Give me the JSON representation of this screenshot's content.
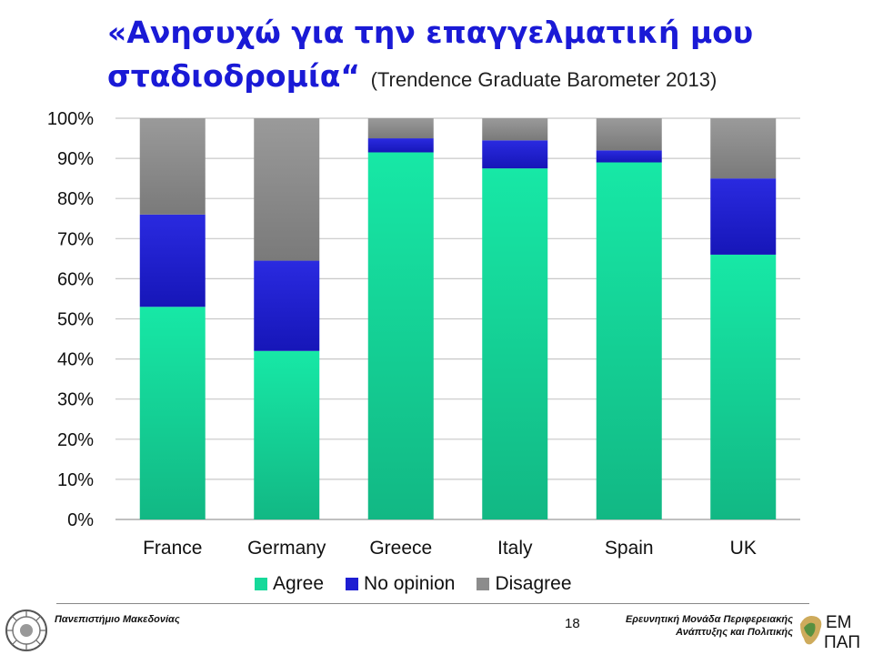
{
  "title": {
    "main_line1": "«Ανησυχώ για την επαγγελματική μου",
    "main_line2": "σταδιοδρομία“",
    "source": "(Trendence Graduate Barometer 2013)"
  },
  "chart_data": {
    "type": "bar",
    "stacked": true,
    "categories": [
      "France",
      "Germany",
      "Greece",
      "Italy",
      "Spain",
      "UK"
    ],
    "series": [
      {
        "name": "Agree",
        "color": "#16e0a0",
        "values": [
          53,
          42,
          91.5,
          87.5,
          89,
          66
        ]
      },
      {
        "name": "No opinion",
        "color": "#1e1ed2",
        "values": [
          23,
          22.5,
          3.5,
          7,
          3,
          19
        ]
      },
      {
        "name": "Disagree",
        "color": "#8c8c8c",
        "values": [
          24,
          35.5,
          5,
          5.5,
          8,
          15
        ]
      }
    ],
    "ylim": [
      0,
      100
    ],
    "yticks": [
      "0%",
      "10%",
      "20%",
      "30%",
      "40%",
      "50%",
      "60%",
      "70%",
      "80%",
      "90%",
      "100%"
    ],
    "grid": true,
    "legend_position": "bottom"
  },
  "footer": {
    "left": "Πανεπιστήμιο Μακεδονίας",
    "page": "18",
    "right_line1": "Ερευνητική Μονάδα Περιφερειακής",
    "right_line2": "Ανάπτυξης και Πολιτικής",
    "logo_top": "ΕΜ",
    "logo_bottom": "ΠΑΠ"
  }
}
